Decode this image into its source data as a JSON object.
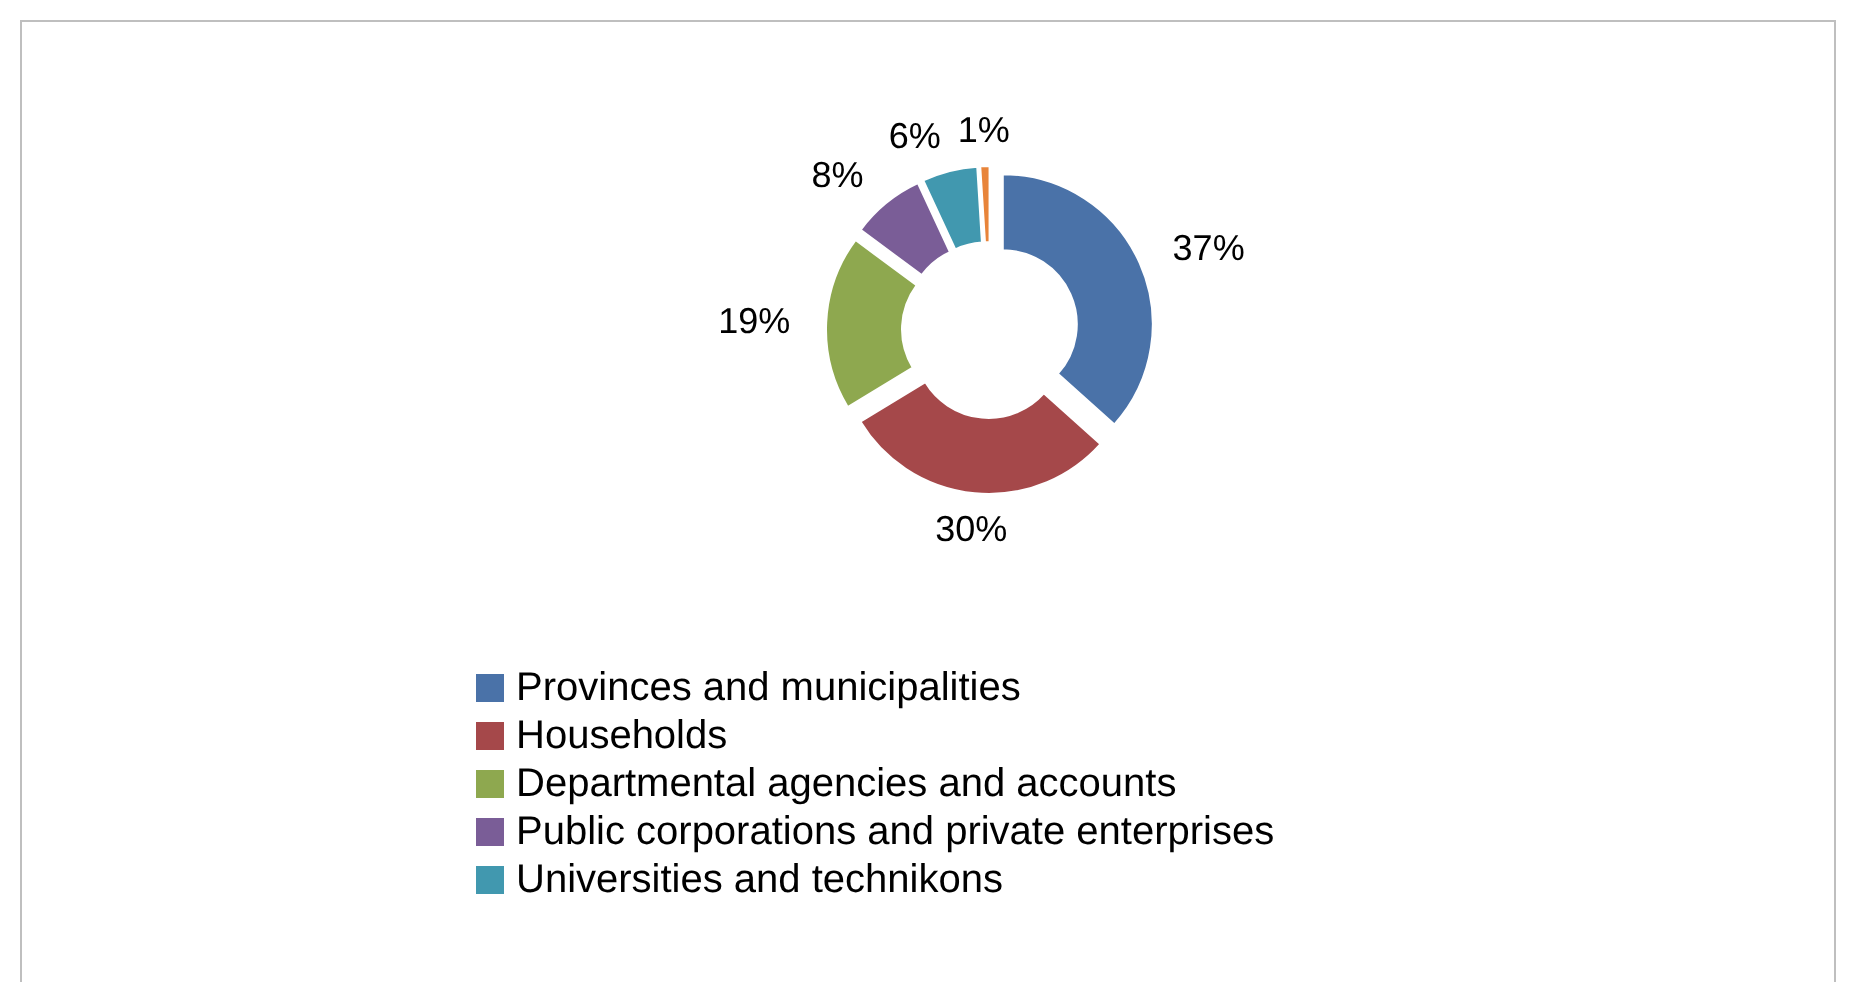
{
  "chart_data": {
    "type": "donut",
    "categories": [
      "Provinces and municipalities",
      "Households",
      "Departmental agencies and accounts",
      "Public corporations and private enterprises",
      "Universities and technikons",
      null
    ],
    "values": [
      37,
      30,
      19,
      8,
      6,
      1
    ],
    "colors": [
      "#4a72a8",
      "#a5484a",
      "#8ea84f",
      "#7a5d97",
      "#4198af",
      "#e8843a"
    ],
    "value_labels": [
      "37%",
      "30%",
      "19%",
      "8%",
      "6%",
      "1%"
    ],
    "legend": "bottom"
  }
}
